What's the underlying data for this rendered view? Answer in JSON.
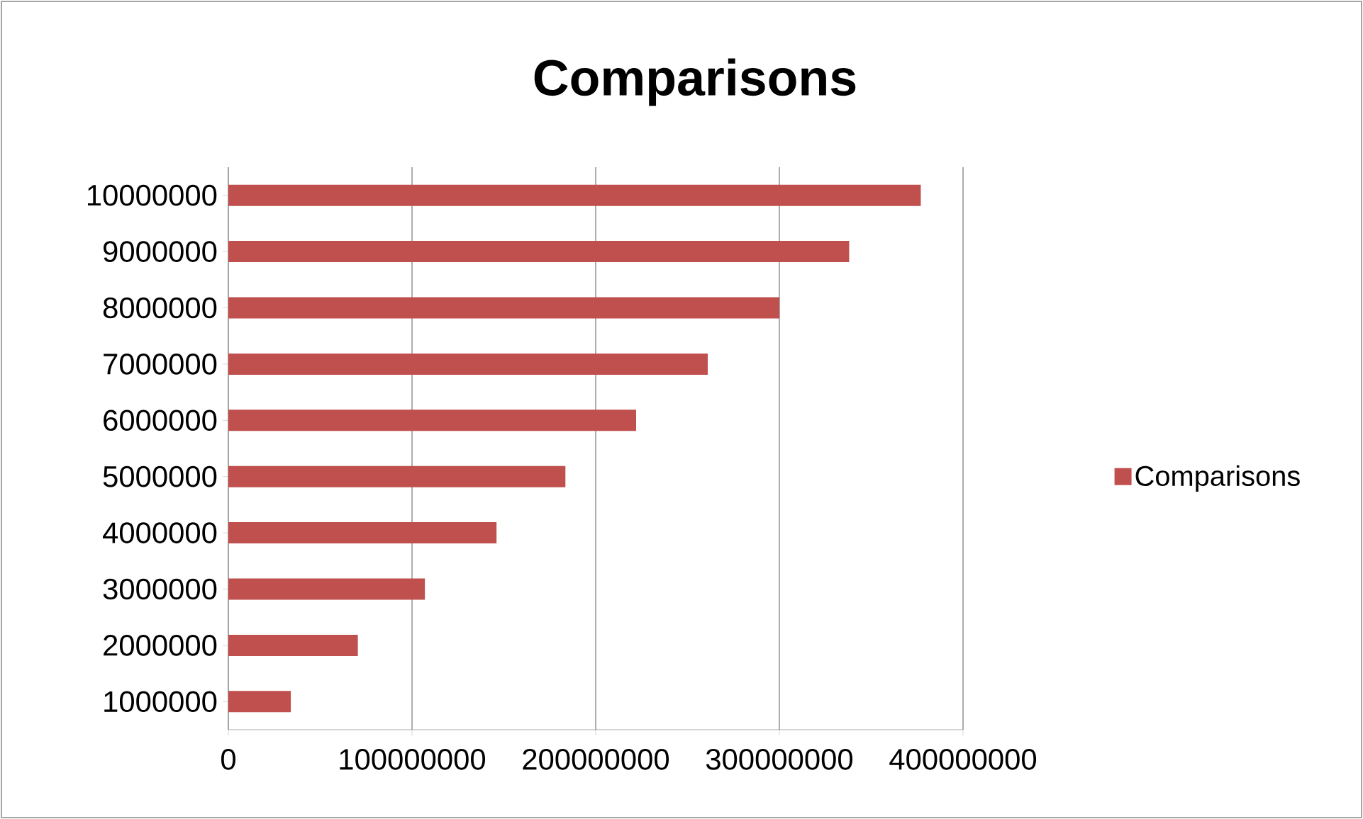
{
  "chart_data": {
    "type": "bar",
    "orientation": "horizontal",
    "title": "Comparisons",
    "categories": [
      "10000000",
      "9000000",
      "8000000",
      "7000000",
      "6000000",
      "5000000",
      "4000000",
      "3000000",
      "2000000",
      "1000000"
    ],
    "series": [
      {
        "name": "Comparisons",
        "color": "#c0504d",
        "values": [
          377000000,
          338000000,
          300000000,
          261000000,
          222000000,
          183500000,
          146000000,
          107000000,
          70500000,
          34000000
        ]
      }
    ],
    "xlim": [
      0,
      400000000
    ],
    "xticks": [
      0,
      100000000,
      200000000,
      300000000,
      400000000
    ],
    "grid": "x",
    "legend": "right"
  }
}
